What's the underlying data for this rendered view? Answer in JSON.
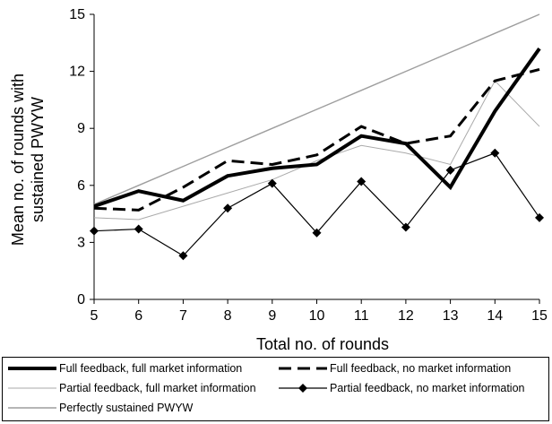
{
  "chart_data": {
    "type": "line",
    "title": "",
    "xlabel": "Total no. of rounds",
    "ylabel": "Mean no. of rounds with sustained PWYW",
    "ylabel_lines": [
      "Mean no. of rounds with",
      "sustained PWYW"
    ],
    "x": [
      5,
      6,
      7,
      8,
      9,
      10,
      11,
      12,
      13,
      14,
      15
    ],
    "xlim": [
      5,
      15
    ],
    "ylim": [
      0,
      15
    ],
    "yticks": [
      0,
      3,
      6,
      9,
      12,
      15
    ],
    "grid": false,
    "legend_position": "bottom",
    "series": [
      {
        "name": "Full feedback, full market information",
        "style": "thick-solid",
        "color": "#000000",
        "values": [
          4.9,
          5.7,
          5.2,
          6.5,
          6.9,
          7.1,
          8.6,
          8.2,
          5.9,
          9.9,
          13.2
        ]
      },
      {
        "name": "Full feedback, no market information",
        "style": "dashed",
        "color": "#000000",
        "values": [
          4.8,
          4.7,
          5.9,
          7.3,
          7.1,
          7.6,
          9.1,
          8.2,
          8.6,
          11.5,
          12.1
        ]
      },
      {
        "name": "Partial feedback, full market information",
        "style": "thin",
        "color": "#aaaaaa",
        "values": [
          4.3,
          4.2,
          4.9,
          5.6,
          6.3,
          7.3,
          8.1,
          7.7,
          7.1,
          11.5,
          9.1
        ]
      },
      {
        "name": "Partial feedback, no market information",
        "style": "diamond",
        "color": "#000000",
        "values": [
          3.6,
          3.7,
          2.3,
          4.8,
          6.1,
          3.5,
          6.2,
          3.8,
          6.8,
          7.7,
          4.3
        ]
      },
      {
        "name": "Perfectly sustained PWYW",
        "style": "reference",
        "color": "#9e9e9e",
        "values": [
          5,
          6,
          7,
          8,
          9,
          10,
          11,
          12,
          13,
          14,
          15
        ]
      }
    ]
  }
}
